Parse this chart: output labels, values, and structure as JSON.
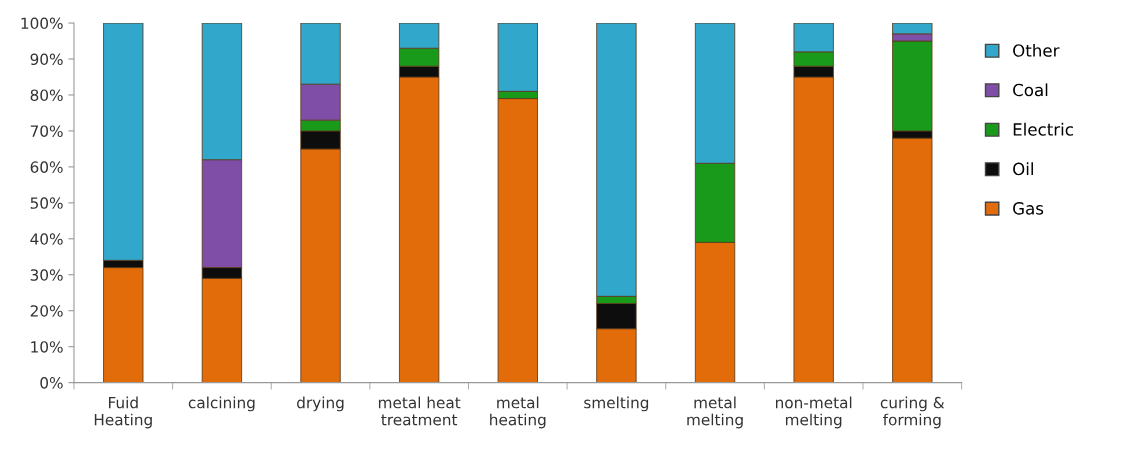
{
  "chart_data": {
    "type": "bar",
    "stacked": true,
    "categories": [
      "Fuid\nHeating",
      "calcining",
      "drying",
      "metal heat\ntreatment",
      "metal\nheating",
      "smelting",
      "metal\nmelting",
      "non-metal\nmelting",
      "curing &\nforming"
    ],
    "series": [
      {
        "name": "Gas",
        "color": "#e36c0a",
        "values": [
          32,
          29,
          65,
          85,
          79,
          15,
          39,
          85,
          68
        ]
      },
      {
        "name": "Oil",
        "color": "#0d0d0d",
        "values": [
          2,
          3,
          5,
          3,
          0,
          7,
          0,
          3,
          2
        ]
      },
      {
        "name": "Electric",
        "color": "#1a9a1a",
        "values": [
          0,
          0,
          3,
          5,
          2,
          2,
          22,
          4,
          25
        ]
      },
      {
        "name": "Coal",
        "color": "#7f4fa8",
        "values": [
          0,
          30,
          10,
          0,
          0,
          0,
          0,
          0,
          2
        ]
      },
      {
        "name": "Other",
        "color": "#31a7cc",
        "values": [
          66,
          38,
          17,
          7,
          19,
          76,
          39,
          8,
          3
        ]
      }
    ],
    "ylim": [
      0,
      100
    ],
    "yticks": [
      {
        "value": 0,
        "label": "0%"
      },
      {
        "value": 10,
        "label": "10%"
      },
      {
        "value": 20,
        "label": "20%"
      },
      {
        "value": 30,
        "label": "30%"
      },
      {
        "value": 40,
        "label": "40%"
      },
      {
        "value": 50,
        "label": "50%"
      },
      {
        "value": 60,
        "label": "60%"
      },
      {
        "value": 70,
        "label": "70%"
      },
      {
        "value": 80,
        "label": "80%"
      },
      {
        "value": 90,
        "label": "90%"
      },
      {
        "value": 100,
        "label": "100%"
      }
    ],
    "grid": false,
    "legend": "right"
  }
}
